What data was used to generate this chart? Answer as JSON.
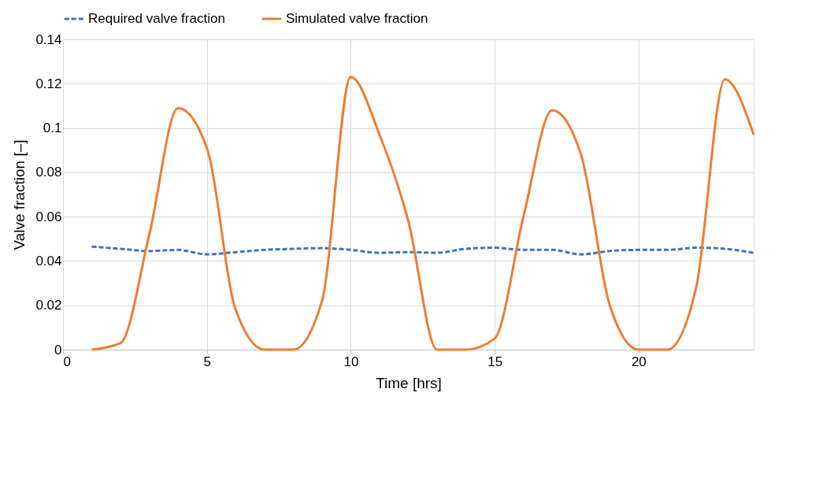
{
  "chart_data": {
    "type": "line",
    "xlabel": "Time [hrs]",
    "ylabel": "Valve fraction [–]",
    "x": [
      1,
      2,
      3,
      4,
      5,
      6,
      7,
      8,
      9,
      10,
      11,
      12,
      13,
      14,
      15,
      16,
      17,
      18,
      19,
      20,
      21,
      22,
      23,
      24
    ],
    "series": [
      {
        "name": "Required valve fraction",
        "color": "#4472c4",
        "line_style": "dashed",
        "values": [
          0.0465,
          0.0455,
          0.0445,
          0.045,
          0.043,
          0.044,
          0.045,
          0.0455,
          0.0458,
          0.045,
          0.0437,
          0.044,
          0.0437,
          0.0455,
          0.046,
          0.045,
          0.045,
          0.043,
          0.0445,
          0.045,
          0.045,
          0.046,
          0.0455,
          0.0437
        ]
      },
      {
        "name": "Simulated valve fraction",
        "color": "#ed7d31",
        "line_style": "solid",
        "values": [
          0,
          0.003,
          0.052,
          0.109,
          0.091,
          0.018,
          0,
          0,
          0.022,
          0.123,
          0.097,
          0.058,
          0,
          0,
          0.005,
          0.06,
          0.108,
          0.088,
          0.02,
          0,
          0,
          0.028,
          0.122,
          0.097
        ]
      }
    ],
    "xlim": [
      0,
      24
    ],
    "xticks": [
      0,
      5,
      10,
      15,
      20
    ],
    "ylim": [
      0,
      0.14
    ],
    "yticks": [
      0,
      0.02,
      0.04,
      0.06,
      0.08,
      0.1,
      0.12,
      0.14
    ],
    "grid": true,
    "legend": "top",
    "marker": "none"
  }
}
